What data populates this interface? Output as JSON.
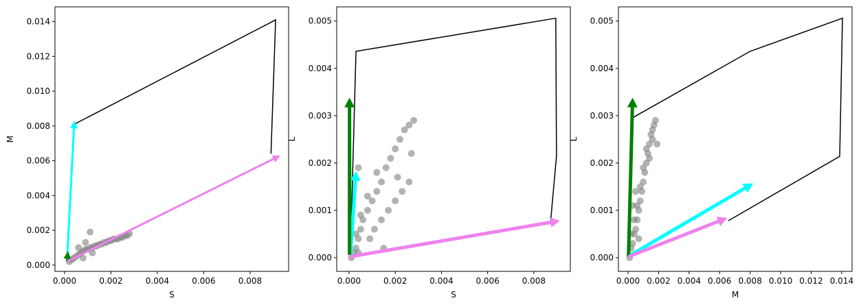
{
  "chart_data": [
    {
      "type": "scatter",
      "x_label": "S",
      "y_label": "M",
      "xlim": [
        -0.000415,
        0.00966
      ],
      "ylim": [
        -0.000363,
        0.01485
      ],
      "xticks": [
        {
          "value": 0,
          "label": "0.000"
        },
        {
          "value": 0.002,
          "label": "0.002"
        },
        {
          "value": 0.004,
          "label": "0.004"
        },
        {
          "value": 0.006,
          "label": "0.006"
        },
        {
          "value": 0.008,
          "label": "0.008"
        }
      ],
      "yticks": [
        {
          "value": 0,
          "label": "0.000"
        },
        {
          "value": 0.002,
          "label": "0.002"
        },
        {
          "value": 0.004,
          "label": "0.004"
        },
        {
          "value": 0.006,
          "label": "0.006"
        },
        {
          "value": 0.008,
          "label": "0.008"
        },
        {
          "value": 0.01,
          "label": "0.010"
        },
        {
          "value": 0.012,
          "label": "0.012"
        },
        {
          "value": 0.014,
          "label": "0.014"
        }
      ],
      "points": {
        "color": "#808080",
        "x": [
          0.0002,
          0.0003,
          0.0004,
          0.0005,
          0.0006,
          0.0007,
          0.0008,
          0.0009,
          0.001,
          0.0011,
          0.0012,
          0.0013,
          0.0014,
          0.0015,
          0.0016,
          0.0017,
          0.0018,
          0.0019,
          0.002,
          0.0021,
          0.0022,
          0.0023,
          0.0024,
          0.0025,
          0.0026,
          0.0027,
          0.0028,
          0.0006,
          0.0009,
          0.0011,
          0.0008,
          0.0012
        ],
        "y": [
          0.0002,
          0.0003,
          0.0004,
          0.0005,
          0.0006,
          0.0007,
          0.0008,
          0.0009,
          0.0009,
          0.001,
          0.001,
          0.0011,
          0.0011,
          0.0012,
          0.0012,
          0.0013,
          0.0013,
          0.0014,
          0.0014,
          0.0015,
          0.0015,
          0.0015,
          0.0016,
          0.0016,
          0.0017,
          0.0017,
          0.0018,
          0.001,
          0.0013,
          0.0019,
          0.0004,
          0.0007
        ]
      },
      "outline": {
        "color": "#000000",
        "x": [
          0.00042,
          0.0091,
          0.0089
        ],
        "y": [
          0.0081,
          0.0141,
          0.0064
        ]
      },
      "arrows": [
        {
          "color": "#00ffff",
          "x": [
            0.0001,
            0.00042
          ],
          "y": [
            0.0002,
            0.0083
          ]
        },
        {
          "color": "#008000",
          "x": [
            0.0001,
            0.00015
          ],
          "y": [
            0.0002,
            0.0008
          ]
        },
        {
          "color": "#ee82ee",
          "x": [
            0.0001,
            0.0093
          ],
          "y": [
            0.0002,
            0.0063
          ]
        }
      ]
    },
    {
      "type": "scatter",
      "x_label": "S",
      "y_label": "L",
      "xlim": [
        -0.000535,
        0.00958
      ],
      "ylim": [
        -0.00029,
        0.0053
      ],
      "xticks": [
        {
          "value": 0,
          "label": "0.000"
        },
        {
          "value": 0.002,
          "label": "0.002"
        },
        {
          "value": 0.004,
          "label": "0.004"
        },
        {
          "value": 0.006,
          "label": "0.006"
        },
        {
          "value": 0.008,
          "label": "0.008"
        }
      ],
      "yticks": [
        {
          "value": 0,
          "label": "0.000"
        },
        {
          "value": 0.001,
          "label": "0.001"
        },
        {
          "value": 0.002,
          "label": "0.002"
        },
        {
          "value": 0.003,
          "label": "0.003"
        },
        {
          "value": 0.004,
          "label": "0.004"
        },
        {
          "value": 0.005,
          "label": "0.005"
        }
      ],
      "points": {
        "color": "#808080",
        "x": [
          0.0001,
          0.0002,
          0.0003,
          0.0004,
          0.0005,
          0.0006,
          0.0008,
          0.001,
          0.0012,
          0.0014,
          0.0016,
          0.0018,
          0.002,
          0.0022,
          0.0024,
          0.0026,
          0.0028,
          0.0003,
          0.0005,
          0.0008,
          0.0011,
          0.0014,
          0.0017,
          0.002,
          0.0023,
          0.0026,
          0.0027,
          0.0009,
          0.0015,
          0.0021,
          0.0004,
          0.0012,
          0.0004
        ],
        "y": [
          0,
          0.0001,
          0.0002,
          0.0004,
          0.0006,
          0.0008,
          0.001,
          0.0012,
          0.0014,
          0.0016,
          0.0019,
          0.0021,
          0.0023,
          0.0025,
          0.0027,
          0.0028,
          0.0029,
          0.0005,
          0.0009,
          0.0013,
          0.0006,
          0.0008,
          0.001,
          0.0012,
          0.0014,
          0.0016,
          0.0022,
          0.0004,
          0.0002,
          0.0017,
          0.0001,
          0.0018,
          0.0019
        ]
      },
      "outline": {
        "color": "#000000",
        "x": [
          6e-05,
          0.0003,
          0.00895,
          0.00898,
          0.00874
        ],
        "y": [
          9e-05,
          0.00436,
          0.00506,
          0.00214,
          0.00084
        ]
      },
      "arrows": [
        {
          "color": "#00ffff",
          "x": [
            6e-05,
            0.0003
          ],
          "y": [
            6e-05,
            0.00183
          ]
        },
        {
          "color": "#008000",
          "x": [
            2e-05,
            2e-05
          ],
          "y": [
            6e-05,
            0.00338
          ]
        },
        {
          "color": "#ee82ee",
          "x": [
            4e-05,
            0.00913
          ],
          "y": [
            2e-05,
            0.00078
          ]
        }
      ]
    },
    {
      "type": "scatter",
      "x_label": "M",
      "y_label": "L",
      "xlim": [
        -0.00063,
        0.01468
      ],
      "ylim": [
        -0.00029,
        0.0053
      ],
      "xticks": [
        {
          "value": 0,
          "label": "0.000"
        },
        {
          "value": 0.002,
          "label": "0.002"
        },
        {
          "value": 0.004,
          "label": "0.004"
        },
        {
          "value": 0.006,
          "label": "0.006"
        },
        {
          "value": 0.008,
          "label": "0.008"
        },
        {
          "value": 0.01,
          "label": "0.010"
        },
        {
          "value": 0.012,
          "label": "0.012"
        },
        {
          "value": 0.014,
          "label": "0.014"
        }
      ],
      "yticks": [
        {
          "value": 0,
          "label": "0.000"
        },
        {
          "value": 0.001,
          "label": "0.001"
        },
        {
          "value": 0.002,
          "label": "0.002"
        },
        {
          "value": 0.003,
          "label": "0.003"
        },
        {
          "value": 0.004,
          "label": "0.004"
        },
        {
          "value": 0.005,
          "label": "0.005"
        }
      ],
      "points": {
        "color": "#808080",
        "x": [
          0.0001,
          0.0002,
          0.0003,
          0.0004,
          0.0005,
          0.0006,
          0.0007,
          0.0008,
          0.0009,
          0.001,
          0.0011,
          0.0012,
          0.0013,
          0.0014,
          0.0015,
          0.0016,
          0.0017,
          0.0018,
          0.0002,
          0.0004,
          0.0006,
          0.0008,
          0.001,
          0.0012,
          0.0014,
          0.0016,
          0.0019,
          0.0003,
          0.0005,
          0.0007
        ],
        "y": [
          0,
          0.0002,
          0.0003,
          0.0005,
          0.0006,
          0.0008,
          0.001,
          0.0012,
          0.0014,
          0.0016,
          0.0018,
          0.002,
          0.0022,
          0.0024,
          0.0026,
          0.0027,
          0.0028,
          0.0029,
          0.0005,
          0.0008,
          0.0011,
          0.0015,
          0.0019,
          0.0023,
          0.0021,
          0.0025,
          0.0024,
          0.0011,
          0.0014,
          0.0004
        ]
      },
      "outline": {
        "color": "#000000",
        "x": [
          0.00032,
          0.008,
          0.01405,
          0.01387,
          0.00657
        ],
        "y": [
          0.00296,
          0.00436,
          0.00506,
          0.00214,
          0.00078
        ]
      },
      "arrows": [
        {
          "color": "#00ffff",
          "x": [
            3e-05,
            0.0082
          ],
          "y": [
            3e-05,
            0.00157
          ]
        },
        {
          "color": "#008000",
          "x": [
            3e-05,
            0.0003
          ],
          "y": [
            3e-05,
            0.00338
          ]
        },
        {
          "color": "#ee82ee",
          "x": [
            3e-05,
            0.0065
          ],
          "y": [
            2e-05,
            0.00084
          ]
        }
      ]
    }
  ]
}
